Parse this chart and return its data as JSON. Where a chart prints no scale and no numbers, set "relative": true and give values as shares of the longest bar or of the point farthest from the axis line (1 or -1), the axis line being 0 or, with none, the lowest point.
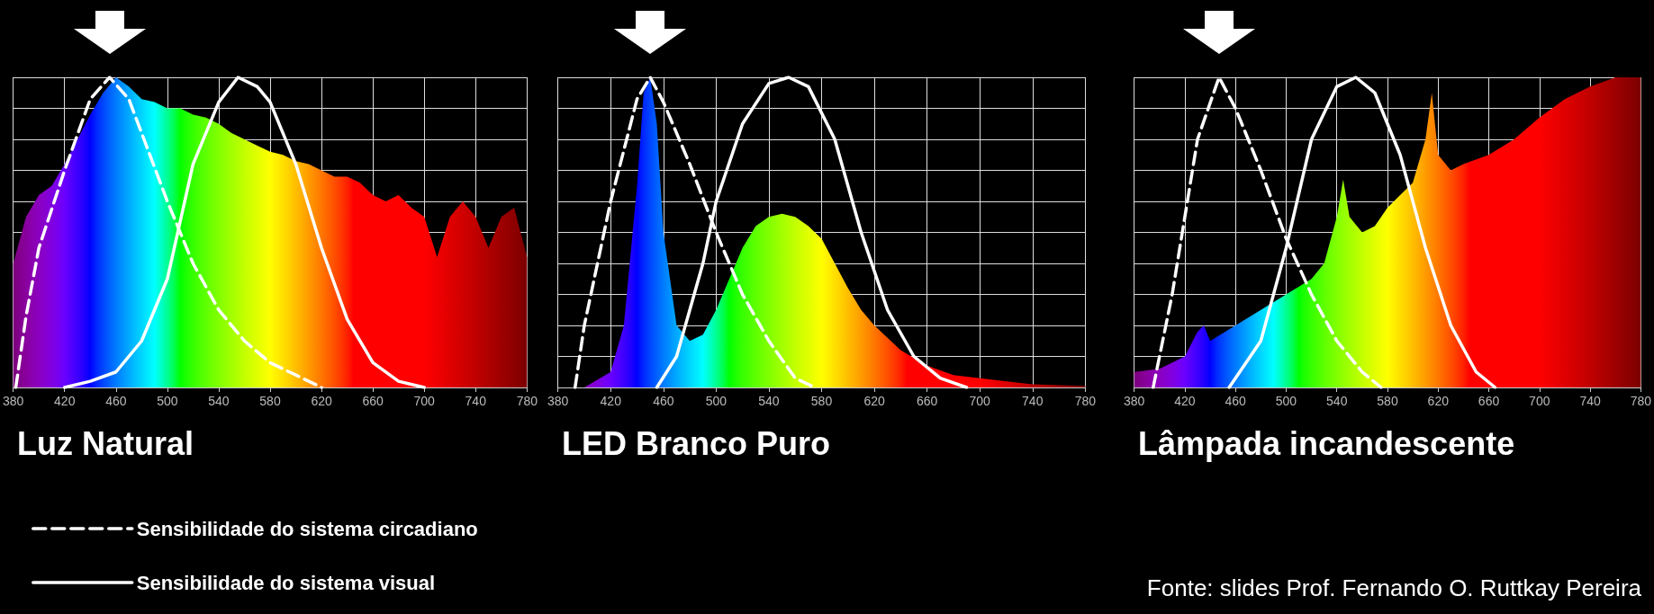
{
  "chart_data": [
    {
      "type": "area",
      "title": "Luz Natural",
      "relative": true,
      "grid": true,
      "legend": "bottom left",
      "xlim": [
        380,
        780
      ],
      "xticks": [
        380,
        420,
        460,
        500,
        540,
        580,
        620,
        660,
        700,
        740,
        780
      ],
      "series": [
        {
          "x": [
            380,
            390,
            400,
            410,
            420,
            430,
            440,
            450,
            460,
            470,
            480,
            490,
            500,
            510,
            520,
            530,
            540,
            550,
            560,
            570,
            580,
            590,
            600,
            610,
            620,
            630,
            640,
            650,
            660,
            670,
            680,
            690,
            700,
            710,
            720,
            730,
            740,
            750,
            760,
            770,
            780
          ],
          "values": [
            0.4,
            0.55,
            0.62,
            0.65,
            0.72,
            0.8,
            0.88,
            0.95,
            1.0,
            0.97,
            0.93,
            0.92,
            0.9,
            0.9,
            0.88,
            0.87,
            0.85,
            0.82,
            0.8,
            0.78,
            0.76,
            0.75,
            0.73,
            0.72,
            0.7,
            0.68,
            0.68,
            0.66,
            0.62,
            0.6,
            0.62,
            0.58,
            0.55,
            0.42,
            0.55,
            0.6,
            0.55,
            0.45,
            0.55,
            0.58,
            0.42
          ]
        },
        {
          "type": "line",
          "name": "Sensibilidade do sistema circadiano",
          "color": "#ffffff",
          "line_style": "dashed",
          "x": [
            382,
            390,
            400,
            420,
            440,
            455,
            470,
            480,
            500,
            520,
            540,
            560,
            580,
            600,
            620
          ],
          "values": [
            0,
            0.23,
            0.45,
            0.7,
            0.93,
            1.0,
            0.93,
            0.82,
            0.6,
            0.4,
            0.25,
            0.15,
            0.08,
            0.04,
            0
          ]
        },
        {
          "type": "line",
          "name": "Sensibilidade do sistema visual",
          "color": "#ffffff",
          "line_style": "solid",
          "x": [
            420,
            440,
            460,
            480,
            500,
            520,
            540,
            555,
            570,
            580,
            600,
            620,
            640,
            660,
            680,
            700
          ],
          "values": [
            0,
            0.02,
            0.05,
            0.15,
            0.35,
            0.72,
            0.92,
            1.0,
            0.97,
            0.92,
            0.72,
            0.45,
            0.22,
            0.08,
            0.02,
            0
          ]
        }
      ]
    },
    {
      "type": "area",
      "title": "LED Branco Puro",
      "relative": true,
      "grid": true,
      "xlim": [
        380,
        780
      ],
      "xticks": [
        380,
        420,
        460,
        500,
        540,
        580,
        620,
        660,
        700,
        740,
        780
      ],
      "series": [
        {
          "x": [
            380,
            400,
            420,
            430,
            440,
            445,
            450,
            455,
            460,
            470,
            480,
            490,
            500,
            510,
            520,
            530,
            540,
            550,
            560,
            570,
            580,
            590,
            600,
            610,
            620,
            640,
            660,
            680,
            700,
            740,
            780
          ],
          "values": [
            0,
            0,
            0.05,
            0.2,
            0.65,
            0.95,
            1.0,
            0.85,
            0.5,
            0.2,
            0.15,
            0.17,
            0.25,
            0.35,
            0.45,
            0.52,
            0.55,
            0.56,
            0.55,
            0.52,
            0.48,
            0.4,
            0.32,
            0.25,
            0.2,
            0.12,
            0.07,
            0.04,
            0.03,
            0.01,
            0.005
          ]
        },
        {
          "type": "line",
          "color": "#ffffff",
          "line_style": "dashed",
          "x": [
            393,
            400,
            420,
            440,
            450,
            460,
            480,
            500,
            520,
            540,
            560,
            575
          ],
          "values": [
            0,
            0.2,
            0.6,
            0.93,
            1.0,
            0.92,
            0.72,
            0.5,
            0.3,
            0.15,
            0.03,
            0
          ]
        },
        {
          "type": "line",
          "color": "#ffffff",
          "line_style": "solid",
          "x": [
            455,
            470,
            490,
            500,
            520,
            540,
            555,
            570,
            590,
            610,
            630,
            650,
            670,
            690
          ],
          "values": [
            0,
            0.1,
            0.4,
            0.6,
            0.85,
            0.98,
            1.0,
            0.97,
            0.8,
            0.5,
            0.25,
            0.1,
            0.03,
            0
          ]
        }
      ]
    },
    {
      "type": "area",
      "title": "Lâmpada incandescente",
      "relative": true,
      "grid": true,
      "xlim": [
        380,
        780
      ],
      "xticks": [
        380,
        420,
        460,
        500,
        540,
        580,
        620,
        660,
        700,
        740,
        780
      ],
      "annotations": [
        "Fonte: slides Prof. Fernando O. Ruttkay Pereira"
      ],
      "series": [
        {
          "x": [
            380,
            400,
            420,
            430,
            435,
            440,
            460,
            480,
            500,
            520,
            530,
            540,
            545,
            550,
            560,
            570,
            580,
            590,
            600,
            610,
            615,
            620,
            630,
            640,
            660,
            680,
            700,
            720,
            740,
            760,
            780
          ],
          "values": [
            0.05,
            0.06,
            0.1,
            0.18,
            0.2,
            0.15,
            0.2,
            0.25,
            0.3,
            0.35,
            0.4,
            0.55,
            0.67,
            0.55,
            0.5,
            0.52,
            0.58,
            0.62,
            0.66,
            0.8,
            0.95,
            0.75,
            0.7,
            0.72,
            0.75,
            0.8,
            0.87,
            0.93,
            0.97,
            1.0,
            1.0
          ]
        },
        {
          "type": "line",
          "color": "#ffffff",
          "line_style": "dashed",
          "x": [
            395,
            410,
            430,
            447,
            460,
            480,
            500,
            520,
            540,
            560,
            575
          ],
          "values": [
            0,
            0.3,
            0.8,
            1.0,
            0.9,
            0.7,
            0.48,
            0.3,
            0.15,
            0.05,
            0
          ]
        },
        {
          "type": "line",
          "color": "#ffffff",
          "line_style": "solid",
          "x": [
            455,
            480,
            500,
            520,
            540,
            555,
            570,
            590,
            610,
            630,
            650,
            665
          ],
          "values": [
            0,
            0.15,
            0.45,
            0.8,
            0.97,
            1.0,
            0.95,
            0.75,
            0.45,
            0.2,
            0.05,
            0
          ]
        }
      ]
    }
  ]
}
